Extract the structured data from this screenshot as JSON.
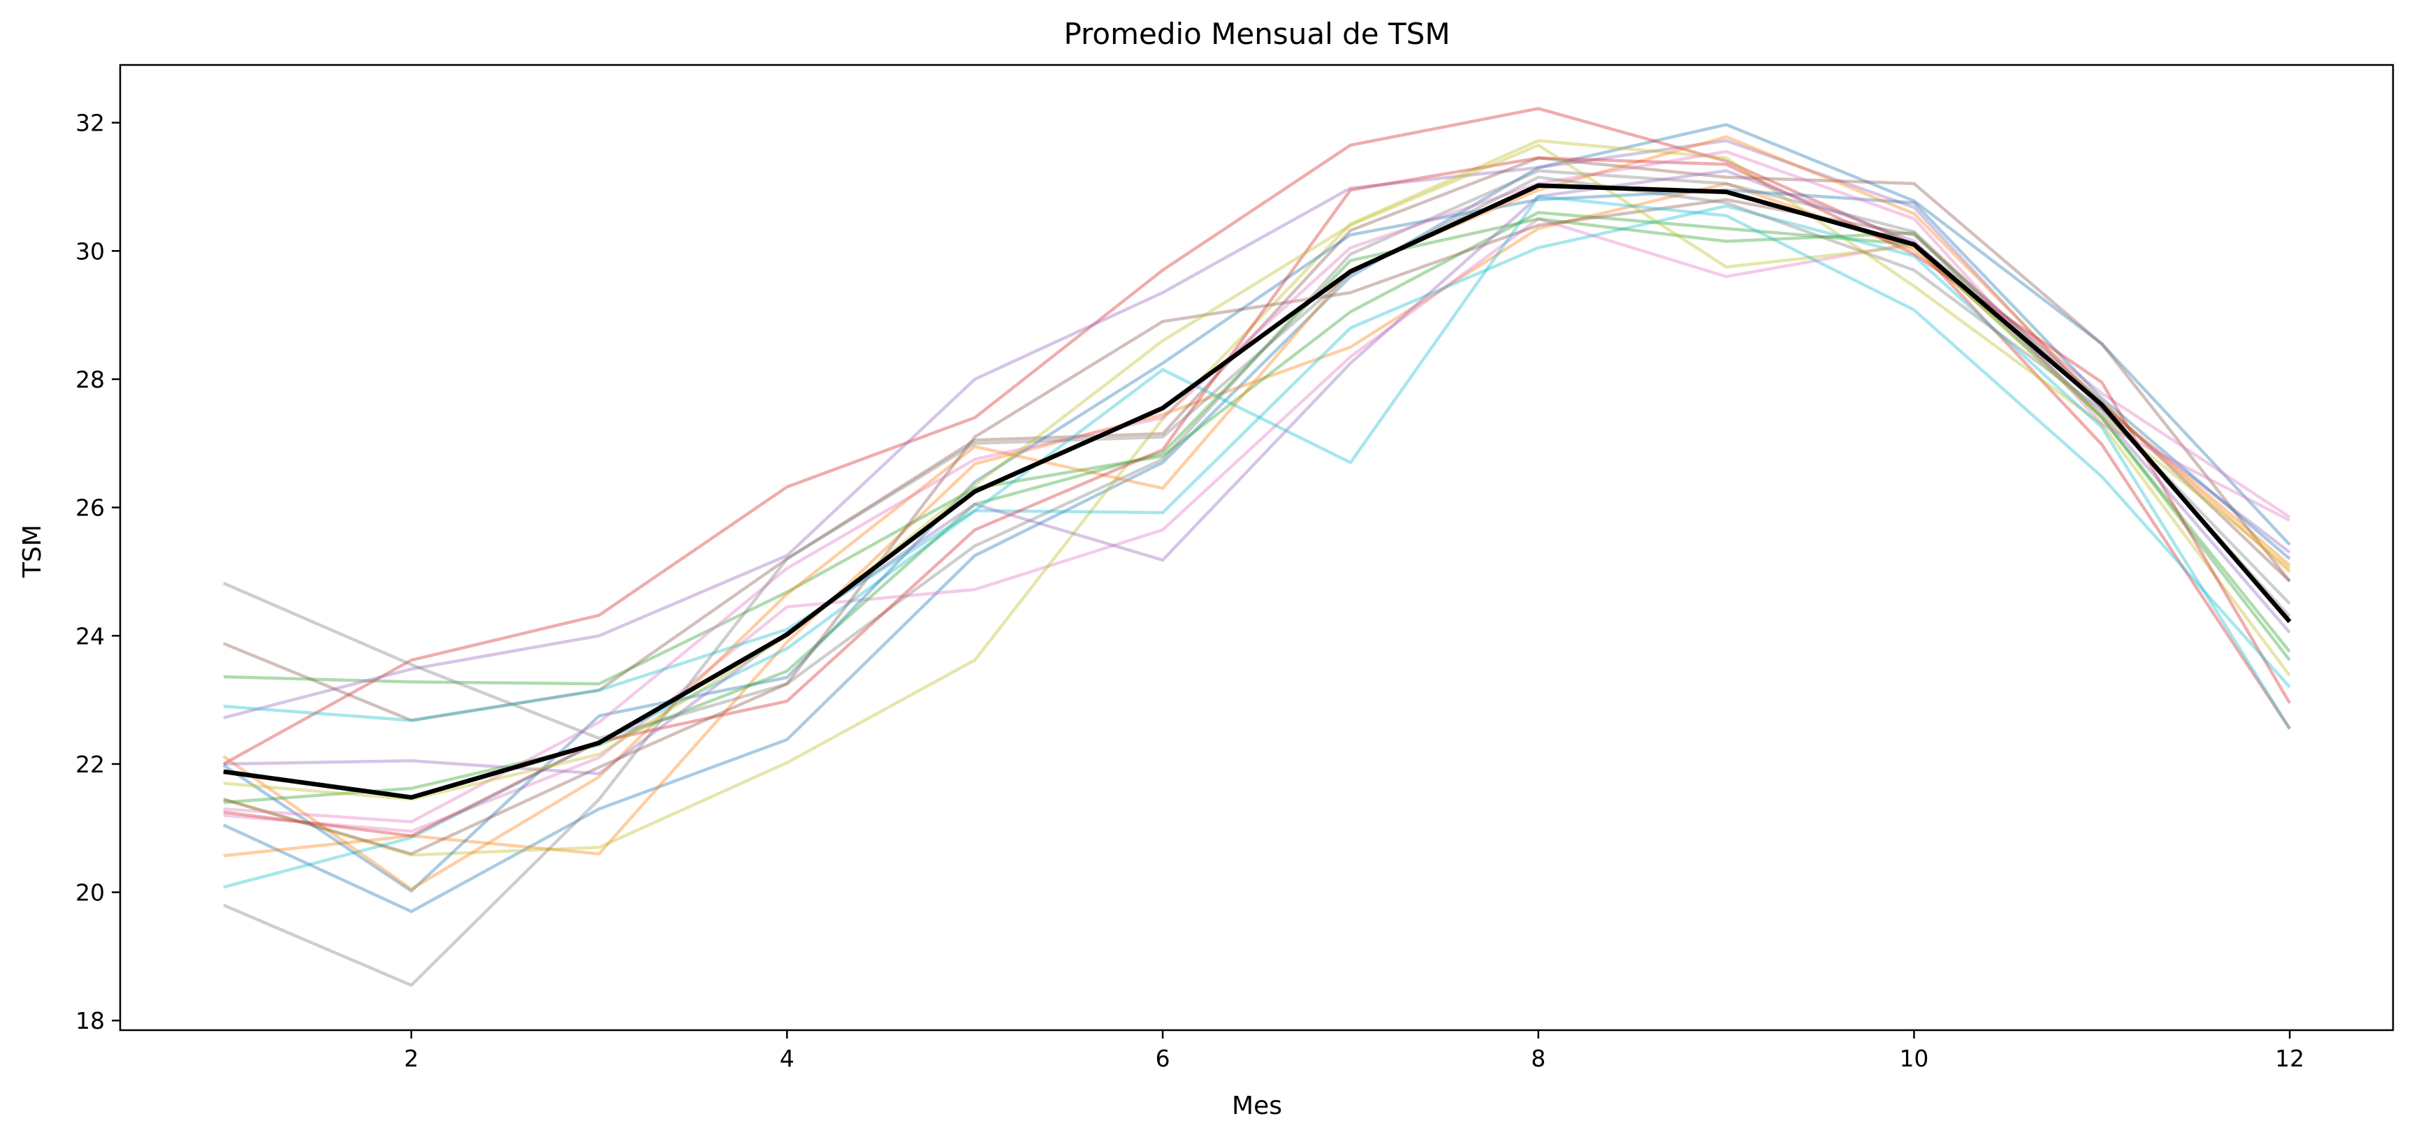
{
  "chart_data": {
    "type": "line",
    "title": "Promedio Mensual de TSM",
    "xlabel": "Mes",
    "ylabel": "TSM",
    "xlim": [
      0.45,
      12.55
    ],
    "ylim": [
      17.85,
      32.9
    ],
    "xticks": [
      2,
      4,
      6,
      8,
      10,
      12
    ],
    "yticks": [
      18,
      20,
      22,
      24,
      26,
      28,
      30,
      32
    ],
    "grid": false,
    "legend": "none",
    "x": [
      1,
      2,
      3,
      4,
      5,
      6,
      7,
      8,
      9,
      10,
      11,
      12
    ],
    "series": [
      {
        "color": "#1f77b4",
        "opacity": 0.38,
        "values": [
          21.05,
          19.7,
          21.3,
          22.38,
          25.25,
          26.7,
          29.6,
          31.3,
          31.97,
          30.78,
          28.55,
          25.42
        ]
      },
      {
        "color": "#ff7f0e",
        "opacity": 0.38,
        "values": [
          20.57,
          20.88,
          20.6,
          23.9,
          26.68,
          27.45,
          28.5,
          30.35,
          31.05,
          30.02,
          27.62,
          25.1
        ]
      },
      {
        "color": "#2ca02c",
        "opacity": 0.38,
        "values": [
          23.36,
          23.28,
          23.25,
          24.68,
          26.3,
          26.8,
          29.05,
          30.6,
          30.35,
          30.1,
          27.4,
          23.62
        ]
      },
      {
        "color": "#d62728",
        "opacity": 0.38,
        "values": [
          22.0,
          23.62,
          24.32,
          26.32,
          27.4,
          29.7,
          31.65,
          32.22,
          31.4,
          30.1,
          26.98,
          22.55
        ]
      },
      {
        "color": "#9467bd",
        "opacity": 0.38,
        "values": [
          22.72,
          23.48,
          24.0,
          25.25,
          28.0,
          29.35,
          30.98,
          31.3,
          31.72,
          30.68,
          27.55,
          25.3
        ]
      },
      {
        "color": "#8c564b",
        "opacity": 0.38,
        "values": [
          23.88,
          22.68,
          23.15,
          25.2,
          27.05,
          27.15,
          30.32,
          31.45,
          31.15,
          31.05,
          28.55,
          24.85
        ]
      },
      {
        "color": "#e377c2",
        "opacity": 0.38,
        "values": [
          21.2,
          20.95,
          22.1,
          24.45,
          24.72,
          25.65,
          28.35,
          30.5,
          29.6,
          30.12,
          27.78,
          25.85
        ]
      },
      {
        "color": "#7f7f7f",
        "opacity": 0.38,
        "values": [
          24.82,
          23.55,
          22.4,
          23.25,
          25.4,
          26.75,
          29.95,
          31.25,
          31.05,
          30.3,
          27.55,
          24.3
        ]
      },
      {
        "color": "#bcbd22",
        "opacity": 0.38,
        "values": [
          21.45,
          20.58,
          20.7,
          22.02,
          23.62,
          27.38,
          30.42,
          31.72,
          31.45,
          29.45,
          27.3,
          23.38
        ]
      },
      {
        "color": "#17becf",
        "opacity": 0.38,
        "values": [
          20.08,
          20.85,
          22.35,
          23.8,
          25.95,
          25.92,
          28.8,
          30.05,
          30.7,
          29.92,
          27.25,
          22.55
        ]
      },
      {
        "color": "#1f77b4",
        "opacity": 0.38,
        "values": [
          21.98,
          20.02,
          22.75,
          23.35,
          26.4,
          28.25,
          30.25,
          30.8,
          30.95,
          30.75,
          27.7,
          25.2
        ]
      },
      {
        "color": "#ff7f0e",
        "opacity": 0.38,
        "values": [
          22.12,
          20.05,
          21.8,
          24.65,
          26.95,
          26.3,
          29.7,
          30.95,
          31.78,
          30.58,
          27.62,
          25.0
        ]
      },
      {
        "color": "#2ca02c",
        "opacity": 0.38,
        "values": [
          21.4,
          21.62,
          22.3,
          23.45,
          26.05,
          26.85,
          29.85,
          30.5,
          30.15,
          30.28,
          27.4,
          23.75
        ]
      },
      {
        "color": "#d62728",
        "opacity": 0.38,
        "values": [
          21.25,
          20.88,
          22.35,
          22.98,
          25.65,
          26.9,
          30.95,
          31.45,
          31.35,
          29.95,
          27.95,
          22.95
        ]
      },
      {
        "color": "#9467bd",
        "opacity": 0.38,
        "values": [
          22.0,
          22.05,
          21.85,
          24.05,
          26.05,
          25.18,
          28.25,
          30.85,
          31.25,
          30.15,
          27.45,
          24.05
        ]
      },
      {
        "color": "#8c564b",
        "opacity": 0.38,
        "values": [
          21.45,
          20.6,
          21.95,
          23.25,
          27.1,
          28.9,
          29.35,
          30.4,
          30.8,
          30.25,
          27.65,
          24.85
        ]
      },
      {
        "color": "#e377c2",
        "opacity": 0.38,
        "values": [
          21.3,
          21.1,
          22.65,
          25.05,
          26.75,
          27.4,
          30.05,
          31.05,
          31.55,
          30.5,
          27.3,
          25.8
        ]
      },
      {
        "color": "#7f7f7f",
        "opacity": 0.38,
        "values": [
          19.8,
          18.55,
          21.45,
          25.2,
          27.0,
          27.1,
          29.65,
          31.15,
          30.75,
          29.7,
          27.52,
          24.5
        ]
      },
      {
        "color": "#bcbd22",
        "opacity": 0.38,
        "values": [
          21.7,
          21.45,
          22.15,
          24.0,
          26.35,
          28.6,
          30.4,
          31.65,
          29.75,
          30.08,
          27.42,
          25.05
        ]
      },
      {
        "color": "#17becf",
        "opacity": 0.38,
        "values": [
          22.9,
          22.68,
          23.15,
          24.1,
          25.95,
          28.15,
          26.7,
          30.85,
          30.55,
          29.08,
          26.48,
          23.2
        ]
      },
      {
        "color": "#000000",
        "opacity": 1,
        "emphasis": true,
        "values": [
          21.88,
          21.48,
          22.33,
          24.02,
          26.25,
          27.55,
          29.68,
          31.02,
          30.92,
          30.1,
          27.6,
          24.22
        ]
      }
    ]
  }
}
